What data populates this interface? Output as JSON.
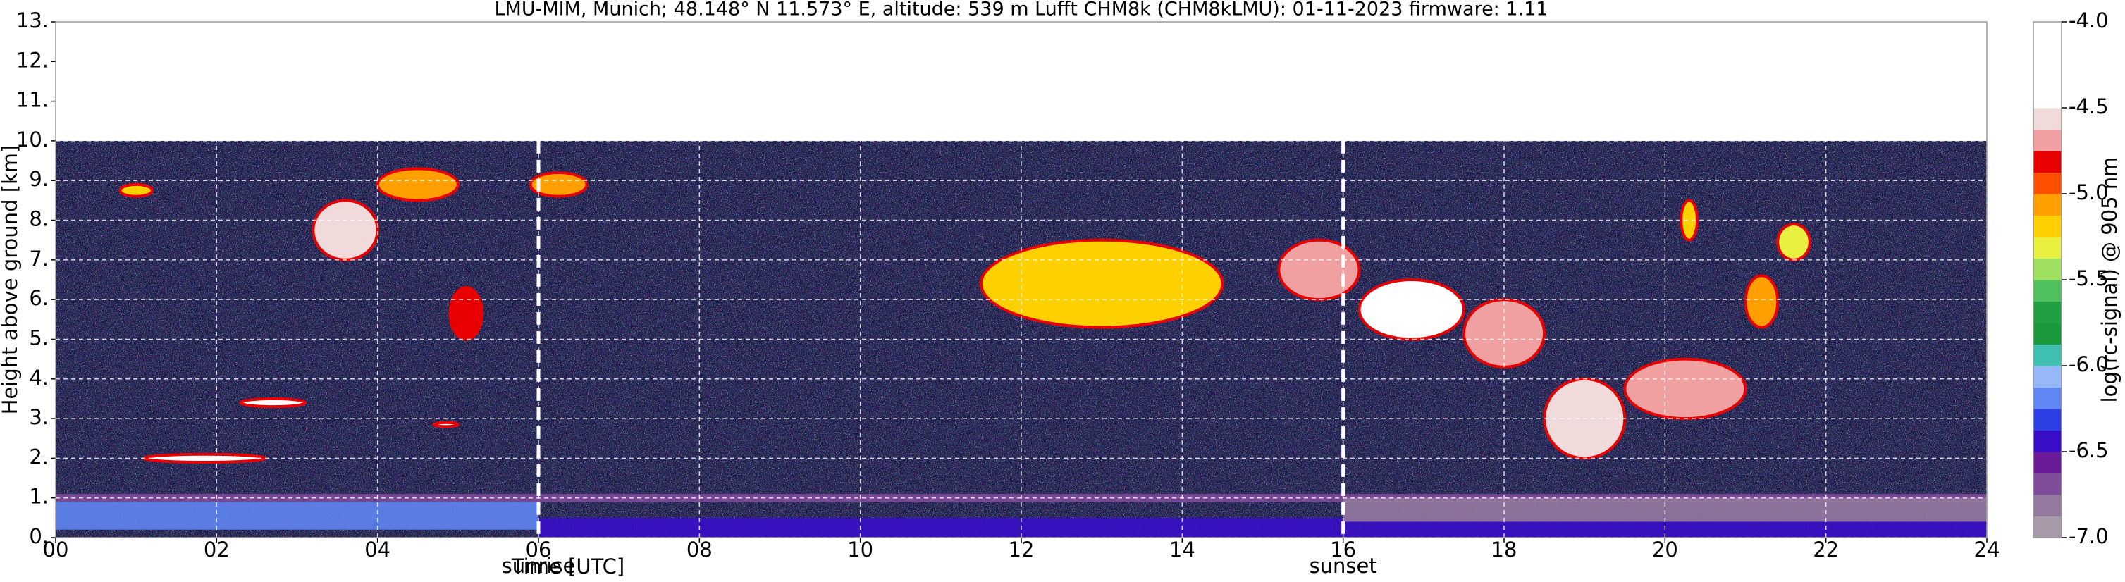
{
  "chart_data": {
    "type": "heatmap",
    "title": "LMU-MIM, Munich; 48.148° N 11.573° E, altitude: 539 m    Lufft CHM8k (CHM8kLMU): 01-11-2023    firmware: 1.11",
    "xlabel": "Time [UTC]",
    "ylabel": "Height above ground [km]",
    "xlim": [
      0,
      24
    ],
    "xticks": [
      {
        "value": 0,
        "label": "00"
      },
      {
        "value": 2,
        "label": "02"
      },
      {
        "value": 4,
        "label": "04"
      },
      {
        "value": 6,
        "label": "06"
      },
      {
        "value": 8,
        "label": "08"
      },
      10,
      12,
      14,
      16,
      18,
      20,
      22,
      24
    ],
    "ylim": [
      0,
      13
    ],
    "yticks": [
      {
        "value": 0,
        "label": "0."
      },
      {
        "value": 1,
        "label": "1."
      },
      {
        "value": 2,
        "label": "2."
      },
      {
        "value": 3,
        "label": "3."
      },
      {
        "value": 4,
        "label": "4."
      },
      {
        "value": 5,
        "label": "5."
      },
      {
        "value": 6,
        "label": "6."
      },
      {
        "value": 7,
        "label": "7."
      },
      {
        "value": 8,
        "label": "8."
      },
      {
        "value": 9,
        "label": "9."
      },
      {
        "value": 10,
        "label": "10."
      },
      {
        "value": 11,
        "label": "11."
      },
      {
        "value": 12,
        "label": "12."
      },
      {
        "value": 13,
        "label": "13."
      }
    ],
    "grid": true,
    "annotations": [
      {
        "x": 6,
        "text": "sunrise"
      },
      {
        "x": 16,
        "text": "sunset"
      }
    ],
    "colorbar": {
      "label": "log(rc-signal) @ 905 nm",
      "clim": [
        -7,
        -4
      ],
      "ticks": [
        {
          "value": -7,
          "label": "-7.0"
        },
        -6.5,
        {
          "value": -6,
          "label": "-6.0"
        },
        -5.5,
        {
          "value": -5,
          "label": "-5.0"
        },
        -4.5,
        {
          "value": -4,
          "label": "-4.0"
        }
      ],
      "colors": [
        "#a89aa8",
        "#957aa0",
        "#7f4d9a",
        "#6a1c98",
        "#3a0ec8",
        "#2c40e6",
        "#5f86f2",
        "#97b8f8",
        "#40c0b0",
        "#1a9a3a",
        "#20a040",
        "#50c060",
        "#a0e060",
        "#e8f040",
        "#ffd000",
        "#ffa000",
        "#ff5000",
        "#e80000",
        "#f0a0a0",
        "#f0dada",
        "#ffffff",
        "#ffffff",
        "#ffffff",
        "#ffffff"
      ]
    },
    "regions": [
      {
        "x": [
          0,
          24
        ],
        "y": [
          0,
          10
        ],
        "value": -6.9,
        "color": "#1b1a45"
      },
      {
        "x": [
          0,
          24
        ],
        "y": [
          0.9,
          1.1
        ],
        "value": -6.7
      },
      {
        "x": [
          0,
          6
        ],
        "y": [
          0.2,
          0.9
        ],
        "value": -6.25
      },
      {
        "x": [
          6,
          24
        ],
        "y": [
          0,
          0.5
        ],
        "value": -6.5
      },
      {
        "x": [
          16,
          24
        ],
        "y": [
          0.4,
          1.0
        ],
        "value": -6.875
      },
      {
        "x": [
          1.1,
          2.6
        ],
        "y": [
          1.9,
          2.1
        ],
        "value": -4.2
      },
      {
        "x": [
          2.3,
          3.1
        ],
        "y": [
          3.3,
          3.5
        ],
        "value": -4.2
      },
      {
        "x": [
          4.7,
          5.0
        ],
        "y": [
          2.8,
          2.9
        ],
        "value": -4.3
      },
      {
        "x": [
          0.8,
          1.2
        ],
        "y": [
          8.6,
          8.9
        ],
        "value": -5.2
      },
      {
        "x": [
          3.2,
          4.0
        ],
        "y": [
          7.0,
          8.5
        ],
        "value": -4.6
      },
      {
        "x": [
          4.0,
          5.0
        ],
        "y": [
          8.5,
          9.3
        ],
        "value": -5.1
      },
      {
        "x": [
          4.9,
          5.3
        ],
        "y": [
          5.0,
          6.3
        ],
        "value": -4.8
      },
      {
        "x": [
          5.9,
          6.6
        ],
        "y": [
          8.6,
          9.2
        ],
        "value": -5.1
      },
      {
        "x": [
          11.5,
          14.5
        ],
        "y": [
          5.3,
          7.5
        ],
        "value": -5.2
      },
      {
        "x": [
          15.2,
          16.2
        ],
        "y": [
          6.0,
          7.5
        ],
        "value": -4.7
      },
      {
        "x": [
          16.2,
          17.5
        ],
        "y": [
          5.0,
          6.5
        ],
        "value": -4.5
      },
      {
        "x": [
          17.5,
          18.5
        ],
        "y": [
          4.3,
          6.0
        ],
        "value": -4.7
      },
      {
        "x": [
          18.5,
          19.5
        ],
        "y": [
          2.0,
          4.0
        ],
        "value": -4.6
      },
      {
        "x": [
          19.5,
          21
        ],
        "y": [
          3.0,
          4.5
        ],
        "value": -4.7
      },
      {
        "x": [
          20.2,
          20.4
        ],
        "y": [
          7.5,
          8.5
        ],
        "value": -5.2
      },
      {
        "x": [
          21.0,
          21.4
        ],
        "y": [
          5.3,
          6.6
        ],
        "value": -5.1
      },
      {
        "x": [
          21.4,
          21.8
        ],
        "y": [
          7.0,
          7.9
        ],
        "value": -5.3
      }
    ]
  }
}
